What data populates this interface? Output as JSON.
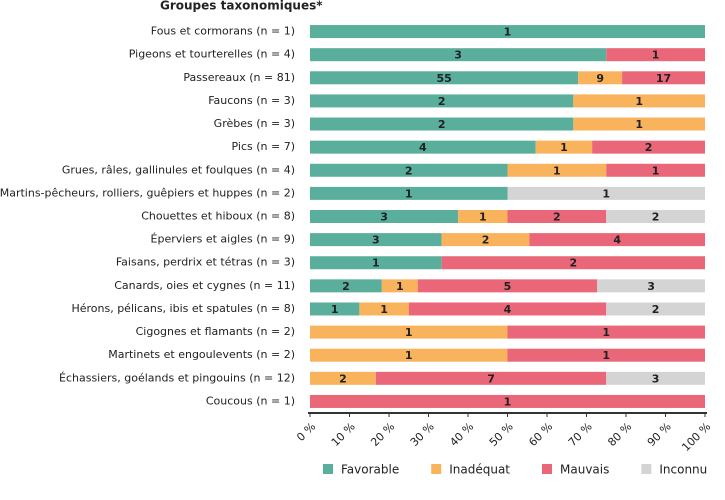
{
  "chart_data": {
    "type": "bar",
    "orientation": "horizontal",
    "stacked": true,
    "normalized": true,
    "title": "Groupes taxonomiques*",
    "categories": [
      "Fous et cormorans (n = 1)",
      "Pigeons et tourterelles (n = 4)",
      "Passereaux (n = 81)",
      "Faucons (n = 3)",
      "Grèbes (n = 3)",
      "Pics (n = 7)",
      "Grues, râles, gallinules et foulques (n = 4)",
      "Martins-pêcheurs, rolliers, guêpiers et huppes (n = 2)",
      "Chouettes et hiboux (n = 8)",
      "Éperviers et aigles (n = 9)",
      "Faisans, perdrix et tétras (n = 3)",
      "Canards, oies et cygnes (n = 11)",
      "Hérons, pélicans, ibis et spatules (n = 8)",
      "Cigognes et flamants (n = 2)",
      "Martinets et engoulevents (n = 2)",
      "Échassiers, goélands et pingouins (n = 12)",
      "Coucous (n = 1)"
    ],
    "series": [
      {
        "name": "Favorable",
        "color": "#5aaf9c",
        "values": [
          1,
          3,
          55,
          2,
          2,
          4,
          2,
          1,
          3,
          3,
          1,
          2,
          1,
          null,
          null,
          null,
          null
        ]
      },
      {
        "name": "Inadéquat",
        "color": "#f8b35c",
        "values": [
          null,
          null,
          9,
          1,
          1,
          1,
          1,
          null,
          1,
          2,
          null,
          1,
          1,
          1,
          1,
          2,
          null
        ]
      },
      {
        "name": "Mauvais",
        "color": "#e96779",
        "values": [
          null,
          1,
          17,
          null,
          null,
          2,
          1,
          null,
          2,
          4,
          2,
          5,
          4,
          1,
          1,
          7,
          1
        ]
      },
      {
        "name": "Inconnu",
        "color": "#d4d4d4",
        "values": [
          null,
          null,
          null,
          null,
          null,
          null,
          null,
          1,
          2,
          null,
          null,
          3,
          2,
          null,
          null,
          3,
          null
        ]
      }
    ],
    "xlim": [
      0,
      100
    ],
    "xticks": [
      {
        "value": 0,
        "label": "0 %"
      },
      {
        "value": 10,
        "label": "10 %"
      },
      {
        "value": 20,
        "label": "20 %"
      },
      {
        "value": 30,
        "label": "30 %"
      },
      {
        "value": 40,
        "label": "40 %"
      },
      {
        "value": 50,
        "label": "50 %"
      },
      {
        "value": 60,
        "label": "60 %"
      },
      {
        "value": 70,
        "label": "70 %"
      },
      {
        "value": 80,
        "label": "80 %"
      },
      {
        "value": 90,
        "label": "90 %"
      },
      {
        "value": 100,
        "label": "100 %"
      }
    ],
    "legend": "bottom"
  }
}
